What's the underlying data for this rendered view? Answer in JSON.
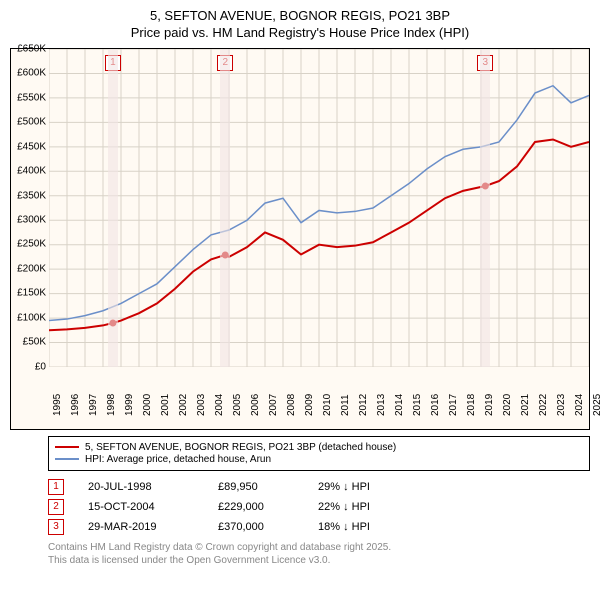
{
  "title_line1": "5, SEFTON AVENUE, BOGNOR REGIS, PO21 3BP",
  "title_line2": "Price paid vs. HM Land Registry's House Price Index (HPI)",
  "chart": {
    "type": "line",
    "background_color": "#fffaf3",
    "grid_color": "#d8d2c7",
    "ylim": [
      0,
      650000
    ],
    "ytick_step": 50000,
    "yticks": [
      "£0",
      "£50K",
      "£100K",
      "£150K",
      "£200K",
      "£250K",
      "£300K",
      "£350K",
      "£400K",
      "£450K",
      "£500K",
      "£550K",
      "£600K",
      "£650K"
    ],
    "xlim": [
      1995,
      2025
    ],
    "xticks": [
      "1995",
      "1996",
      "1997",
      "1998",
      "1999",
      "2000",
      "2001",
      "2002",
      "2003",
      "2004",
      "2005",
      "2006",
      "2007",
      "2008",
      "2009",
      "2010",
      "2011",
      "2012",
      "2013",
      "2014",
      "2015",
      "2016",
      "2017",
      "2018",
      "2019",
      "2020",
      "2021",
      "2022",
      "2023",
      "2024",
      "2025"
    ],
    "series": [
      {
        "name": "price_paid",
        "color": "#cc0000",
        "width": 2,
        "points": [
          [
            1995,
            75000
          ],
          [
            1996,
            77000
          ],
          [
            1997,
            80000
          ],
          [
            1998,
            85000
          ],
          [
            1998.55,
            89950
          ],
          [
            1999,
            95000
          ],
          [
            2000,
            110000
          ],
          [
            2001,
            130000
          ],
          [
            2002,
            160000
          ],
          [
            2003,
            195000
          ],
          [
            2004,
            220000
          ],
          [
            2004.79,
            229000
          ],
          [
            2005,
            225000
          ],
          [
            2006,
            245000
          ],
          [
            2007,
            275000
          ],
          [
            2008,
            260000
          ],
          [
            2009,
            230000
          ],
          [
            2010,
            250000
          ],
          [
            2011,
            245000
          ],
          [
            2012,
            248000
          ],
          [
            2013,
            255000
          ],
          [
            2014,
            275000
          ],
          [
            2015,
            295000
          ],
          [
            2016,
            320000
          ],
          [
            2017,
            345000
          ],
          [
            2018,
            360000
          ],
          [
            2019.24,
            370000
          ],
          [
            2020,
            380000
          ],
          [
            2021,
            410000
          ],
          [
            2022,
            460000
          ],
          [
            2023,
            465000
          ],
          [
            2024,
            450000
          ],
          [
            2025,
            460000
          ]
        ]
      },
      {
        "name": "hpi",
        "color": "#6b8fc9",
        "width": 1.5,
        "points": [
          [
            1995,
            95000
          ],
          [
            1996,
            98000
          ],
          [
            1997,
            105000
          ],
          [
            1998,
            115000
          ],
          [
            1999,
            130000
          ],
          [
            2000,
            150000
          ],
          [
            2001,
            170000
          ],
          [
            2002,
            205000
          ],
          [
            2003,
            240000
          ],
          [
            2004,
            270000
          ],
          [
            2005,
            280000
          ],
          [
            2006,
            300000
          ],
          [
            2007,
            335000
          ],
          [
            2008,
            345000
          ],
          [
            2009,
            295000
          ],
          [
            2010,
            320000
          ],
          [
            2011,
            315000
          ],
          [
            2012,
            318000
          ],
          [
            2013,
            325000
          ],
          [
            2014,
            350000
          ],
          [
            2015,
            375000
          ],
          [
            2016,
            405000
          ],
          [
            2017,
            430000
          ],
          [
            2018,
            445000
          ],
          [
            2019,
            450000
          ],
          [
            2020,
            460000
          ],
          [
            2021,
            505000
          ],
          [
            2022,
            560000
          ],
          [
            2023,
            575000
          ],
          [
            2024,
            540000
          ],
          [
            2025,
            555000
          ]
        ]
      }
    ],
    "sale_markers": [
      {
        "n": "1",
        "x": 1998.55,
        "y": 89950
      },
      {
        "n": "2",
        "x": 2004.79,
        "y": 229000
      },
      {
        "n": "3",
        "x": 2019.24,
        "y": 370000
      }
    ],
    "marker_color": "#cc0000"
  },
  "legend": {
    "items": [
      {
        "color": "#cc0000",
        "label": "5, SEFTON AVENUE, BOGNOR REGIS, PO21 3BP (detached house)"
      },
      {
        "color": "#6b8fc9",
        "label": "HPI: Average price, detached house, Arun"
      }
    ]
  },
  "sales_table": {
    "rows": [
      {
        "n": "1",
        "date": "20-JUL-1998",
        "price": "£89,950",
        "pct": "29% ↓ HPI"
      },
      {
        "n": "2",
        "date": "15-OCT-2004",
        "price": "£229,000",
        "pct": "22% ↓ HPI"
      },
      {
        "n": "3",
        "date": "29-MAR-2019",
        "price": "£370,000",
        "pct": "18% ↓ HPI"
      }
    ]
  },
  "footer_line1": "Contains HM Land Registry data © Crown copyright and database right 2025.",
  "footer_line2": "This data is licensed under the Open Government Licence v3.0."
}
